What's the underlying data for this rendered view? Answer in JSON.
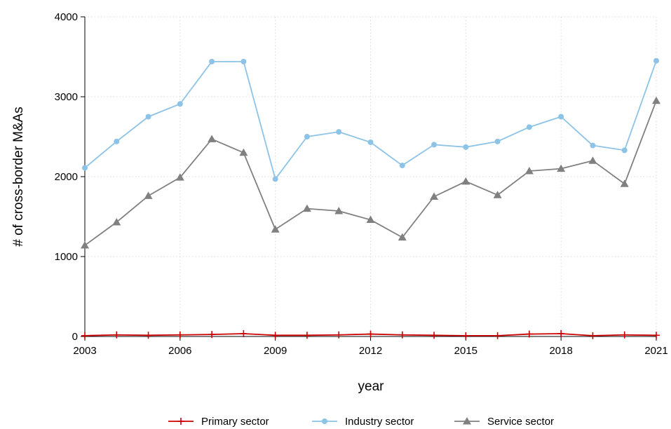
{
  "chart_data": {
    "type": "line",
    "xlabel": "year",
    "ylabel": "# of cross-border M&As",
    "x": [
      2003,
      2004,
      2005,
      2006,
      2007,
      2008,
      2009,
      2010,
      2011,
      2012,
      2013,
      2014,
      2015,
      2016,
      2017,
      2018,
      2019,
      2020,
      2021
    ],
    "xticks": [
      "2003",
      "2006",
      "2009",
      "2012",
      "2015",
      "2018",
      "2021"
    ],
    "yticks": [
      "0",
      "1000",
      "2000",
      "3000",
      "4000"
    ],
    "ylim": [
      0,
      4000
    ],
    "xlim": [
      2003,
      2021
    ],
    "grid": true,
    "legend_position": "bottom",
    "series": [
      {
        "name": "Primary sector",
        "color": "#cc0000",
        "marker": "plus",
        "values": [
          10,
          20,
          15,
          20,
          25,
          35,
          15,
          15,
          20,
          30,
          20,
          15,
          10,
          10,
          30,
          35,
          10,
          20,
          15
        ]
      },
      {
        "name": "Industry sector",
        "color": "#8cc3e6",
        "marker": "circle",
        "values": [
          2110,
          2440,
          2750,
          2910,
          3440,
          3440,
          1970,
          2500,
          2560,
          2430,
          2140,
          2400,
          2370,
          2440,
          2620,
          2750,
          2390,
          2330,
          3450
        ]
      },
      {
        "name": "Service sector",
        "color": "#808080",
        "marker": "triangle",
        "values": [
          1140,
          1430,
          1760,
          1990,
          2470,
          2300,
          1340,
          1600,
          1570,
          1460,
          1240,
          1750,
          1940,
          1770,
          2070,
          2100,
          2200,
          1910,
          2950
        ]
      }
    ]
  }
}
